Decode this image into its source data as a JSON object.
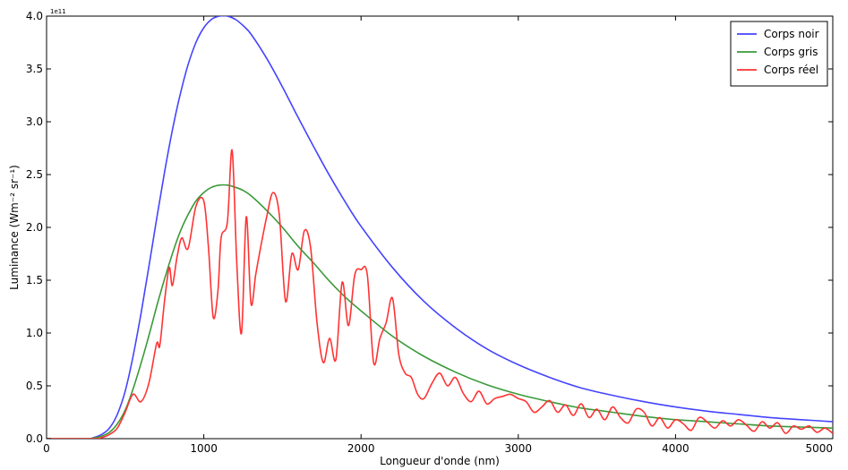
{
  "chart_data": {
    "type": "line",
    "xlabel": "Longueur d'onde (nm)",
    "ylabel": "Luminance (Wm⁻² sr⁻¹)",
    "y_offset_label": "1e11",
    "xlim": [
      0,
      5000
    ],
    "ylim": [
      0,
      4.0
    ],
    "xticks": [
      0,
      1000,
      2000,
      3000,
      4000,
      5000
    ],
    "yticks": [
      0.0,
      0.5,
      1.0,
      1.5,
      2.0,
      2.5,
      3.0,
      3.5,
      4.0
    ],
    "ytick_labels": [
      "0.0",
      "0.5",
      "1.0",
      "1.5",
      "2.0",
      "2.5",
      "3.0",
      "3.5",
      "4.0"
    ],
    "grid": false,
    "legend_position": "top-right",
    "series": [
      {
        "name": "Corps noir",
        "color": "#4444ff",
        "x": [
          0,
          250,
          300,
          350,
          400,
          450,
          500,
          550,
          600,
          650,
          700,
          750,
          800,
          850,
          900,
          950,
          1000,
          1050,
          1100,
          1150,
          1200,
          1250,
          1300,
          1400,
          1500,
          1600,
          1700,
          1800,
          1900,
          2000,
          2200,
          2400,
          2600,
          2800,
          3000,
          3200,
          3400,
          3600,
          3800,
          4000,
          4200,
          4400,
          4600,
          4800,
          5000
        ],
        "y": [
          0,
          0.0,
          0.01,
          0.04,
          0.1,
          0.23,
          0.45,
          0.78,
          1.18,
          1.62,
          2.08,
          2.52,
          2.92,
          3.26,
          3.54,
          3.75,
          3.89,
          3.97,
          4.0,
          4.0,
          3.97,
          3.91,
          3.83,
          3.6,
          3.33,
          3.04,
          2.76,
          2.49,
          2.24,
          2.01,
          1.62,
          1.3,
          1.05,
          0.85,
          0.7,
          0.58,
          0.48,
          0.41,
          0.35,
          0.3,
          0.26,
          0.23,
          0.2,
          0.18,
          0.16
        ]
      },
      {
        "name": "Corps gris",
        "color": "#3a9a3a",
        "x": [
          0,
          250,
          300,
          350,
          400,
          450,
          500,
          550,
          600,
          650,
          700,
          750,
          800,
          850,
          900,
          950,
          1000,
          1050,
          1100,
          1150,
          1200,
          1250,
          1300,
          1400,
          1500,
          1600,
          1700,
          1800,
          1900,
          2000,
          2200,
          2400,
          2600,
          2800,
          3000,
          3200,
          3400,
          3600,
          3800,
          4000,
          4200,
          4400,
          4600,
          4800,
          5000
        ],
        "y": [
          0,
          0.0,
          0.006,
          0.024,
          0.06,
          0.14,
          0.27,
          0.47,
          0.71,
          0.97,
          1.25,
          1.51,
          1.75,
          1.96,
          2.12,
          2.25,
          2.33,
          2.38,
          2.4,
          2.4,
          2.38,
          2.35,
          2.3,
          2.16,
          2.0,
          1.82,
          1.66,
          1.49,
          1.34,
          1.21,
          0.97,
          0.78,
          0.63,
          0.51,
          0.42,
          0.35,
          0.29,
          0.25,
          0.21,
          0.18,
          0.16,
          0.14,
          0.12,
          0.11,
          0.1
        ]
      },
      {
        "name": "Corps réel",
        "color": "#ff3333",
        "x": [
          0,
          300,
          350,
          400,
          450,
          500,
          550,
          600,
          650,
          700,
          720,
          750,
          780,
          800,
          830,
          860,
          900,
          950,
          1000,
          1030,
          1060,
          1090,
          1110,
          1150,
          1180,
          1210,
          1240,
          1270,
          1300,
          1330,
          1360,
          1400,
          1440,
          1480,
          1520,
          1560,
          1600,
          1640,
          1680,
          1720,
          1760,
          1800,
          1840,
          1880,
          1920,
          1960,
          2000,
          2040,
          2080,
          2120,
          2160,
          2200,
          2240,
          2280,
          2320,
          2360,
          2400,
          2450,
          2500,
          2550,
          2600,
          2650,
          2700,
          2750,
          2800,
          2850,
          2900,
          2950,
          3000,
          3050,
          3100,
          3150,
          3200,
          3250,
          3300,
          3350,
          3400,
          3450,
          3500,
          3550,
          3600,
          3650,
          3700,
          3750,
          3800,
          3850,
          3900,
          3950,
          4000,
          4050,
          4100,
          4150,
          4200,
          4250,
          4300,
          4350,
          4400,
          4450,
          4500,
          4550,
          4600,
          4650,
          4700,
          4750,
          4800,
          4850,
          4900,
          4950,
          5000
        ],
        "y": [
          0,
          0.0,
          0.01,
          0.04,
          0.1,
          0.25,
          0.42,
          0.35,
          0.52,
          0.9,
          0.88,
          1.3,
          1.62,
          1.45,
          1.72,
          1.9,
          1.8,
          2.2,
          2.25,
          1.8,
          1.15,
          1.4,
          1.9,
          2.05,
          2.73,
          1.65,
          1.0,
          2.1,
          1.28,
          1.55,
          1.8,
          2.1,
          2.33,
          2.12,
          1.3,
          1.75,
          1.6,
          1.97,
          1.8,
          1.1,
          0.72,
          0.95,
          0.75,
          1.48,
          1.07,
          1.55,
          1.6,
          1.55,
          0.72,
          0.95,
          1.1,
          1.33,
          0.8,
          0.62,
          0.58,
          0.42,
          0.38,
          0.52,
          0.62,
          0.5,
          0.58,
          0.43,
          0.35,
          0.45,
          0.33,
          0.38,
          0.4,
          0.42,
          0.38,
          0.35,
          0.25,
          0.3,
          0.36,
          0.25,
          0.32,
          0.22,
          0.33,
          0.2,
          0.28,
          0.18,
          0.3,
          0.2,
          0.15,
          0.28,
          0.25,
          0.12,
          0.2,
          0.1,
          0.18,
          0.14,
          0.08,
          0.2,
          0.16,
          0.1,
          0.17,
          0.12,
          0.18,
          0.13,
          0.07,
          0.16,
          0.1,
          0.15,
          0.05,
          0.12,
          0.09,
          0.12,
          0.06,
          0.1,
          0.05
        ]
      }
    ]
  }
}
